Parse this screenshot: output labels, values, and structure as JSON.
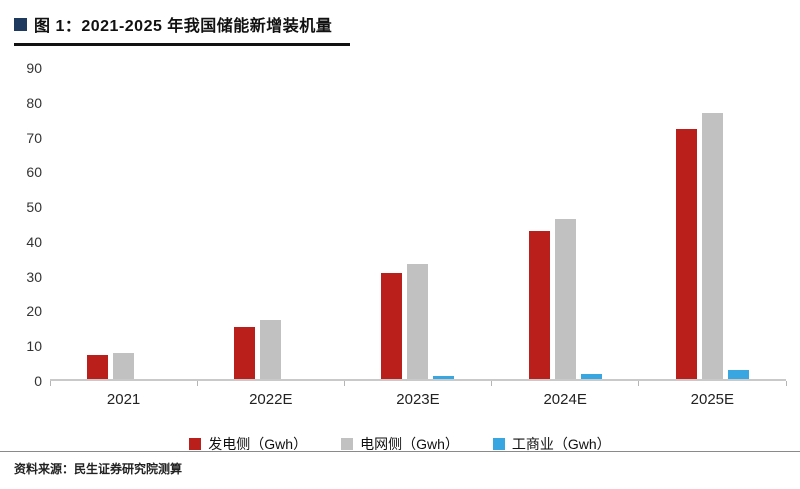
{
  "header": {
    "title": "图 1：2021-2025 年我国储能新增装机量",
    "marker_color": "#1e3a5f"
  },
  "footer": {
    "source": "资料来源：民生证券研究院测算"
  },
  "chart_data": {
    "type": "bar",
    "title": "图 1：2021-2025 年我国储能新增装机量",
    "categories": [
      "2021",
      "2022E",
      "2023E",
      "2024E",
      "2025E"
    ],
    "series": [
      {
        "name": "发电侧（Gwh）",
        "key": "generation-side",
        "color": "#bb1f1c",
        "values": [
          7,
          15,
          30.5,
          42.5,
          72
        ]
      },
      {
        "name": "电网侧（Gwh）",
        "key": "grid-side",
        "color": "#c1c1c1",
        "values": [
          7.5,
          17,
          33,
          46,
          76.5
        ]
      },
      {
        "name": "工商业（Gwh）",
        "key": "commercial-industrial",
        "color": "#38a6e0",
        "values": [
          0,
          0,
          1,
          1.5,
          2.5
        ]
      }
    ],
    "ylim": [
      0,
      90
    ],
    "yticks": [
      0,
      10,
      20,
      30,
      40,
      50,
      60,
      70,
      80,
      90
    ],
    "grid": false,
    "legend_position": "bottom",
    "unit": "Gwh"
  }
}
